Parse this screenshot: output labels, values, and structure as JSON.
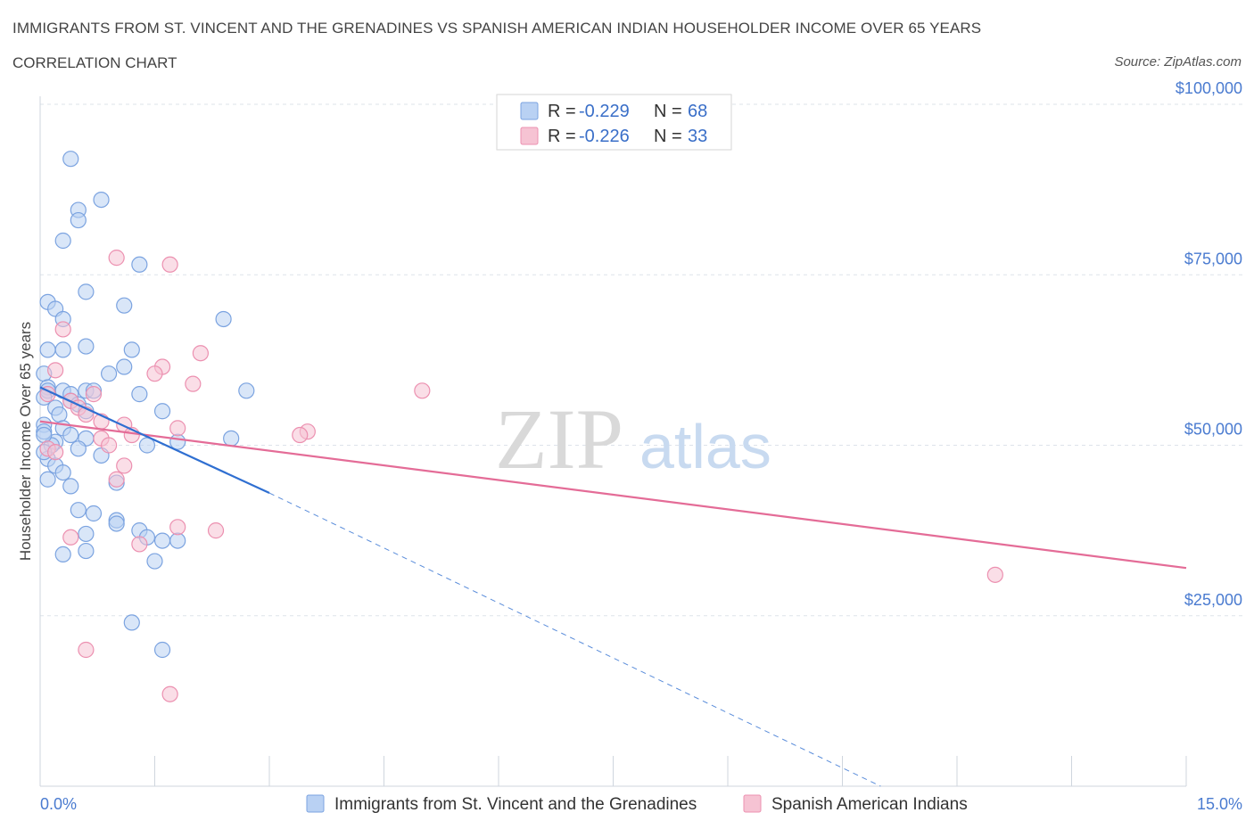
{
  "title": "IMMIGRANTS FROM ST. VINCENT AND THE GRENADINES VS SPANISH AMERICAN INDIAN HOUSEHOLDER INCOME OVER 65 YEARS",
  "subtitle": "CORRELATION CHART",
  "source": "Source: ZipAtlas.com",
  "watermark": {
    "zip": "ZIP",
    "atlas": "atlas"
  },
  "legend": {
    "series1": {
      "r_label": "R = ",
      "r_value": "-0.229",
      "n_label": "N = ",
      "n_value": "68"
    },
    "series2": {
      "r_label": "R = ",
      "r_value": "-0.226",
      "n_label": "N = ",
      "n_value": "33"
    }
  },
  "bottom_legend": {
    "series1": "Immigrants from St. Vincent and the Grenadines",
    "series2": "Spanish American Indians"
  },
  "colors": {
    "blue_fill": "#b9d1f3",
    "blue_stroke": "#7ba3e0",
    "blue_line": "#2f6fd1",
    "pink_fill": "#f6c3d3",
    "pink_stroke": "#ec90b0",
    "pink_line": "#e46c97",
    "grid": "#dde3ea",
    "axis_text": "#4a7bd0"
  },
  "chart_data": {
    "type": "scatter",
    "xlabel": "",
    "ylabel": "Householder Income Over 65 years",
    "xlim": [
      0,
      15
    ],
    "ylim": [
      0,
      100000
    ],
    "x_tick_labels": {
      "left": "0.0%",
      "right": "15.0%"
    },
    "y_ticks": [
      25000,
      50000,
      75000,
      100000
    ],
    "y_tick_labels": [
      "$25,000",
      "$50,000",
      "$75,000",
      "$100,000"
    ],
    "series": [
      {
        "name": "Immigrants from St. Vincent and the Grenadines",
        "color": "blue",
        "R": -0.229,
        "N": 68,
        "trend": {
          "x0": 0.0,
          "y0": 58500,
          "x1": 3.0,
          "y1": 43000,
          "dash_x1": 11.0,
          "dash_y1": 0
        },
        "points": [
          [
            0.4,
            92000
          ],
          [
            0.8,
            86000
          ],
          [
            0.5,
            84500
          ],
          [
            0.5,
            83000
          ],
          [
            0.3,
            80000
          ],
          [
            1.3,
            76500
          ],
          [
            0.6,
            72500
          ],
          [
            0.1,
            71000
          ],
          [
            1.1,
            70500
          ],
          [
            0.2,
            70000
          ],
          [
            0.3,
            68500
          ],
          [
            2.4,
            68500
          ],
          [
            0.6,
            64500
          ],
          [
            0.1,
            64000
          ],
          [
            0.3,
            64000
          ],
          [
            1.2,
            64000
          ],
          [
            1.1,
            61500
          ],
          [
            0.9,
            60500
          ],
          [
            0.05,
            60500
          ],
          [
            0.1,
            58500
          ],
          [
            0.1,
            58000
          ],
          [
            0.6,
            58000
          ],
          [
            0.3,
            58000
          ],
          [
            0.7,
            58000
          ],
          [
            0.4,
            57500
          ],
          [
            1.3,
            57500
          ],
          [
            2.7,
            58000
          ],
          [
            0.05,
            57000
          ],
          [
            0.4,
            56500
          ],
          [
            0.5,
            56000
          ],
          [
            0.2,
            55500
          ],
          [
            0.6,
            55000
          ],
          [
            1.6,
            55000
          ],
          [
            0.25,
            54500
          ],
          [
            0.05,
            53000
          ],
          [
            0.3,
            52500
          ],
          [
            0.05,
            52000
          ],
          [
            0.4,
            51500
          ],
          [
            0.6,
            51000
          ],
          [
            2.5,
            51000
          ],
          [
            0.2,
            50500
          ],
          [
            0.15,
            50000
          ],
          [
            1.8,
            50500
          ],
          [
            1.4,
            50000
          ],
          [
            0.5,
            49500
          ],
          [
            0.8,
            48500
          ],
          [
            0.1,
            48000
          ],
          [
            0.2,
            47000
          ],
          [
            0.3,
            46000
          ],
          [
            1.0,
            44500
          ],
          [
            0.4,
            44000
          ],
          [
            0.5,
            40500
          ],
          [
            0.7,
            40000
          ],
          [
            1.0,
            39000
          ],
          [
            1.0,
            38500
          ],
          [
            1.3,
            37500
          ],
          [
            0.6,
            37000
          ],
          [
            1.4,
            36500
          ],
          [
            1.6,
            36000
          ],
          [
            1.8,
            36000
          ],
          [
            0.6,
            34500
          ],
          [
            0.3,
            34000
          ],
          [
            1.5,
            33000
          ],
          [
            1.2,
            24000
          ],
          [
            1.6,
            20000
          ],
          [
            0.05,
            49000
          ],
          [
            0.05,
            51500
          ],
          [
            0.1,
            45000
          ]
        ]
      },
      {
        "name": "Spanish American Indians",
        "color": "pink",
        "R": -0.226,
        "N": 33,
        "trend": {
          "x0": 0.0,
          "y0": 53500,
          "x1": 15.0,
          "y1": 32000
        },
        "points": [
          [
            1.0,
            77500
          ],
          [
            1.7,
            76500
          ],
          [
            0.3,
            67000
          ],
          [
            2.1,
            63500
          ],
          [
            1.6,
            61500
          ],
          [
            0.2,
            61000
          ],
          [
            1.5,
            60500
          ],
          [
            2.0,
            59000
          ],
          [
            5.0,
            58000
          ],
          [
            0.1,
            57500
          ],
          [
            0.7,
            57500
          ],
          [
            0.4,
            56500
          ],
          [
            0.5,
            55500
          ],
          [
            0.6,
            54500
          ],
          [
            0.8,
            53500
          ],
          [
            1.1,
            53000
          ],
          [
            1.8,
            52500
          ],
          [
            1.2,
            51500
          ],
          [
            3.5,
            52000
          ],
          [
            3.4,
            51500
          ],
          [
            0.8,
            51000
          ],
          [
            0.9,
            50000
          ],
          [
            0.1,
            49500
          ],
          [
            0.2,
            49000
          ],
          [
            1.1,
            47000
          ],
          [
            1.0,
            45000
          ],
          [
            1.8,
            38000
          ],
          [
            2.3,
            37500
          ],
          [
            0.4,
            36500
          ],
          [
            1.3,
            35500
          ],
          [
            0.6,
            20000
          ],
          [
            1.7,
            13500
          ],
          [
            12.5,
            31000
          ]
        ]
      }
    ]
  }
}
